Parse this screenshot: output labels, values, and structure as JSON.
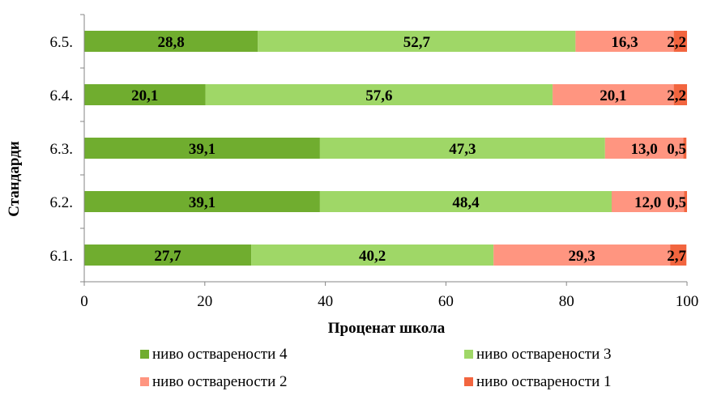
{
  "chart_data": {
    "type": "bar",
    "orientation": "horizontal",
    "stacked": true,
    "categories": [
      "6.1.",
      "6.2.",
      "6.3.",
      "6.4.",
      "6.5."
    ],
    "series": [
      {
        "name": "ниво остварености 4",
        "color": "#70ad2f",
        "values": [
          27.7,
          39.1,
          39.1,
          20.1,
          28.8
        ],
        "labels": [
          "27,7",
          "39,1",
          "39,1",
          "20,1",
          "28,8"
        ]
      },
      {
        "name": "ниво остварености 3",
        "color": "#9fd767",
        "values": [
          40.2,
          48.4,
          47.3,
          57.6,
          52.7
        ],
        "labels": [
          "40,2",
          "48,4",
          "47,3",
          "57,6",
          "52,7"
        ]
      },
      {
        "name": "ниво остварености 2",
        "color": "#ff9580",
        "values": [
          29.3,
          12.0,
          13.0,
          20.1,
          16.3
        ],
        "labels": [
          "29,3",
          "12,0",
          "13,0",
          "20,1",
          "16,3"
        ]
      },
      {
        "name": "ниво остварености 1",
        "color": "#f2653f",
        "values": [
          2.7,
          0.5,
          0.5,
          2.2,
          2.2
        ],
        "labels": [
          "2,7",
          "0,5",
          "0,5",
          "2,2",
          "2,2"
        ]
      }
    ],
    "xlabel": "Проценат школа",
    "ylabel": "Стандарди",
    "xlim": [
      0,
      100
    ],
    "xticks": [
      "0",
      "20",
      "40",
      "60",
      "80",
      "100"
    ],
    "grid": false,
    "legend_position": "bottom"
  }
}
